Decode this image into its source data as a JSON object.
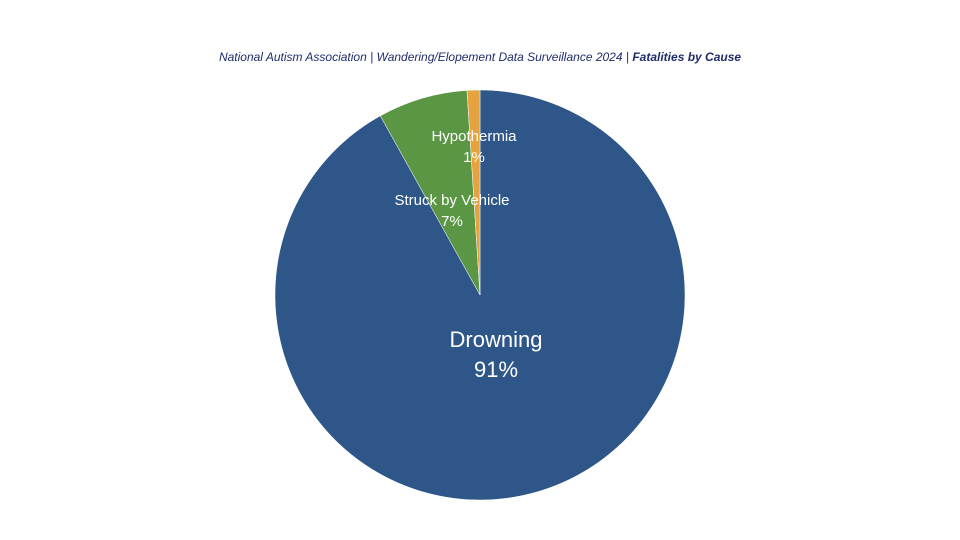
{
  "title": {
    "org": "National Autism Association",
    "sep1": "|",
    "report": "Wandering/Elopement Data Surveillance 2024",
    "sep2": "|",
    "topic": "Fatalities by Cause"
  },
  "chart_data": {
    "type": "pie",
    "categories": [
      "Drowning",
      "Struck by Vehicle",
      "Hypothermia"
    ],
    "values": [
      91,
      7,
      1
    ],
    "value_labels": [
      "91%",
      "7%",
      "1%"
    ],
    "colors": [
      "#2e5689",
      "#5a9643",
      "#e6a23c"
    ],
    "start": "12 o'clock",
    "direction": "clockwise",
    "legend": "none"
  }
}
